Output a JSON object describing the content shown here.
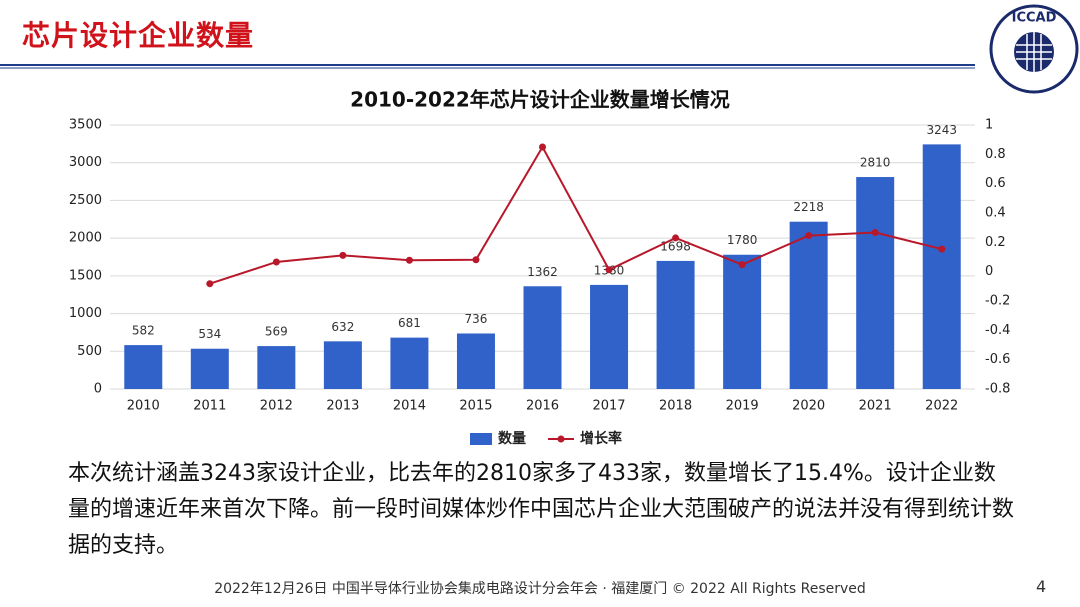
{
  "header": {
    "title": "芯片设计企业数量"
  },
  "logo": {
    "text": "ICCAD"
  },
  "chart_data": {
    "type": "combo",
    "title": "2010-2022年芯片设计企业数量增长情况",
    "categories": [
      "2010",
      "2011",
      "2012",
      "2013",
      "2014",
      "2015",
      "2016",
      "2017",
      "2018",
      "2019",
      "2020",
      "2021",
      "2022"
    ],
    "series": [
      {
        "name": "数量",
        "type": "bar",
        "color": "#3162c9",
        "values": [
          582,
          534,
          569,
          632,
          681,
          736,
          1362,
          1380,
          1698,
          1780,
          2218,
          2810,
          3243
        ]
      },
      {
        "name": "增长率",
        "type": "line",
        "color": "#b8182a",
        "axis": "y2",
        "values": [
          null,
          -0.082,
          0.066,
          0.111,
          0.078,
          0.081,
          0.85,
          0.013,
          0.23,
          0.048,
          0.246,
          0.267,
          0.154
        ]
      }
    ],
    "ylim": [
      0,
      3500
    ],
    "yticks": [
      0,
      500,
      1000,
      1500,
      2000,
      2500,
      3000,
      3500
    ],
    "y2lim": [
      -0.8,
      1
    ],
    "y2ticks": [
      -0.8,
      -0.6,
      -0.4,
      -0.2,
      0,
      0.2,
      0.4,
      0.6,
      0.8,
      1
    ],
    "grid": true,
    "legend": "bottom"
  },
  "body": {
    "text": "本次统计涵盖3243家设计企业，比去年的2810家多了433家，数量增长了15.4%。设计企业数量的增速近年来首次下降。前一段时间媒体炒作中国芯片企业大范围破产的说法并没有得到统计数据的支持。"
  },
  "footer": {
    "text": "2022年12月26日 中国半导体行业协会集成电路设计分会年会 · 福建厦门 © 2022 All Rights Reserved",
    "page": "4"
  }
}
